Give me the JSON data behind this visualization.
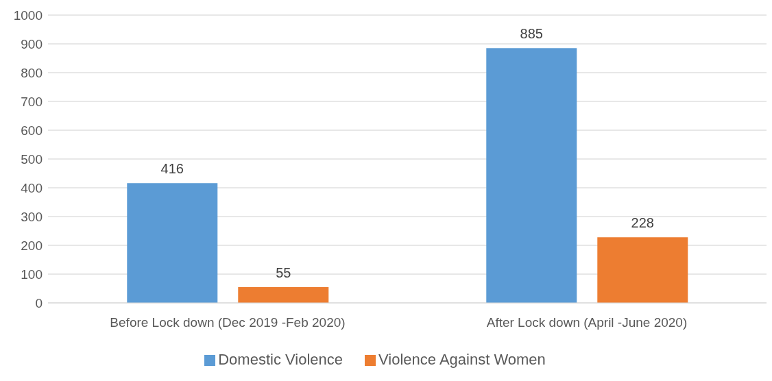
{
  "chart_data": {
    "type": "bar",
    "categories": [
      "Before Lock down (Dec 2019 -Feb 2020)",
      "After Lock down (April -June  2020)"
    ],
    "series": [
      {
        "name": "Domestic Violence",
        "color": "#5b9bd5",
        "values": [
          416,
          885
        ]
      },
      {
        "name": "Violence Against Women",
        "color": "#ed7d31",
        "values": [
          55,
          228
        ]
      }
    ],
    "ylim": [
      0,
      1000
    ],
    "yticks": [
      0,
      100,
      200,
      300,
      400,
      500,
      600,
      700,
      800,
      900,
      1000
    ],
    "grid": "y",
    "legend": "bottom",
    "data_labels": true
  }
}
